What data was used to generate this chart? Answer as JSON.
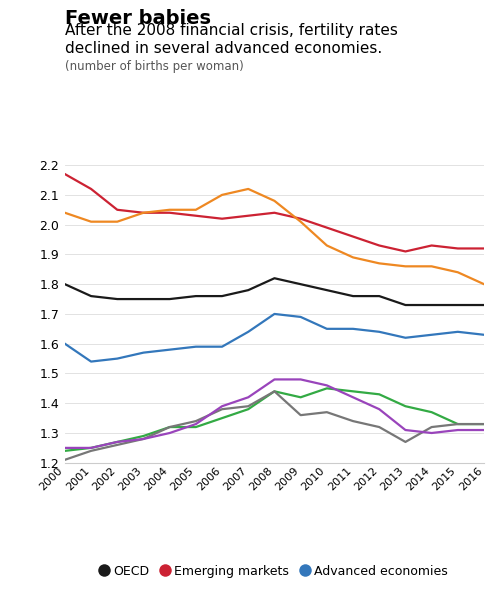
{
  "years": [
    2000,
    2001,
    2002,
    2003,
    2004,
    2005,
    2006,
    2007,
    2008,
    2009,
    2010,
    2011,
    2012,
    2013,
    2014,
    2015,
    2016
  ],
  "OECD": [
    1.8,
    1.76,
    1.75,
    1.75,
    1.75,
    1.76,
    1.76,
    1.78,
    1.82,
    1.8,
    1.78,
    1.76,
    1.76,
    1.73,
    1.73,
    1.73,
    1.73
  ],
  "Emerging_markets": [
    2.17,
    2.12,
    2.05,
    2.04,
    2.04,
    2.03,
    2.02,
    2.03,
    2.04,
    2.02,
    1.99,
    1.96,
    1.93,
    1.91,
    1.93,
    1.92,
    1.92
  ],
  "Advanced_economies": [
    1.6,
    1.54,
    1.55,
    1.57,
    1.58,
    1.59,
    1.59,
    1.64,
    1.7,
    1.69,
    1.65,
    1.65,
    1.64,
    1.62,
    1.63,
    1.64,
    1.63
  ],
  "United_States": [
    2.04,
    2.01,
    2.01,
    2.04,
    2.05,
    2.05,
    2.1,
    2.12,
    2.08,
    2.01,
    1.93,
    1.89,
    1.87,
    1.86,
    1.86,
    1.84,
    1.8
  ],
  "Italy": [
    1.24,
    1.25,
    1.27,
    1.29,
    1.32,
    1.32,
    1.35,
    1.38,
    1.44,
    1.42,
    1.45,
    1.44,
    1.43,
    1.39,
    1.37,
    1.33,
    1.33
  ],
  "Spain": [
    1.21,
    1.24,
    1.26,
    1.28,
    1.32,
    1.34,
    1.38,
    1.39,
    1.44,
    1.36,
    1.37,
    1.34,
    1.32,
    1.27,
    1.32,
    1.33,
    1.33
  ],
  "Greece": [
    1.25,
    1.25,
    1.27,
    1.28,
    1.3,
    1.33,
    1.39,
    1.42,
    1.48,
    1.48,
    1.46,
    1.42,
    1.38,
    1.31,
    1.3,
    1.31,
    1.31
  ],
  "colors": {
    "OECD": "#1a1a1a",
    "Emerging_markets": "#cc2233",
    "Advanced_economies": "#3377bb",
    "United_States": "#ee8822",
    "Italy": "#33aa44",
    "Spain": "#777777",
    "Greece": "#9944bb"
  },
  "title_bold": "Fewer babies",
  "title_sub": "After the 2008 financial crisis, fertility rates\ndeclined in several advanced economies.",
  "title_note": "(number of births per woman)",
  "ylim": [
    1.2,
    2.25
  ],
  "yticks": [
    1.2,
    1.3,
    1.4,
    1.5,
    1.6,
    1.7,
    1.8,
    1.9,
    2.0,
    2.1,
    2.2
  ],
  "background_color": "#ffffff"
}
